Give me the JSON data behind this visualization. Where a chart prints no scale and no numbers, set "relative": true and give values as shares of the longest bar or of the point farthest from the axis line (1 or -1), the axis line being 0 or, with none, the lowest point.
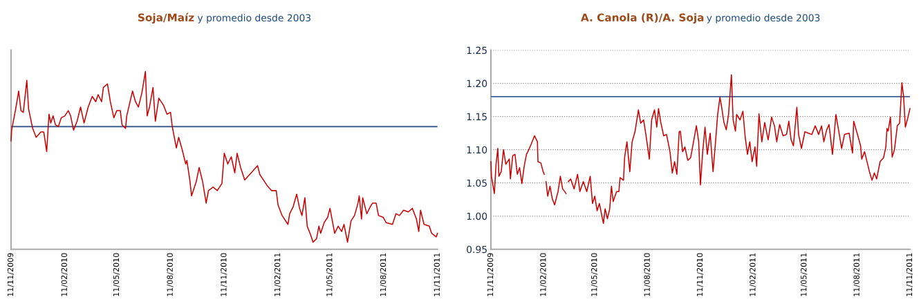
{
  "chart_data": [
    {
      "type": "line",
      "title": "Soja/Maíz",
      "subtitle": "y promedio desde 2003",
      "relative": true,
      "tick_labels": "x",
      "grid": false,
      "marker": "none",
      "line_style": "solid",
      "xlim": [
        "2009-11-11",
        "2011-11-11"
      ],
      "xticks": [
        {
          "value": "2009-11-11",
          "label": "11/11/2009"
        },
        {
          "value": "2010-02-11",
          "label": "11/02/2010"
        },
        {
          "value": "2010-05-11",
          "label": "11/05/2010"
        },
        {
          "value": "2010-08-11",
          "label": "11/08/2010"
        },
        {
          "value": "2010-11-11",
          "label": "11/11/2010"
        },
        {
          "value": "2011-02-11",
          "label": "11/02/2011"
        },
        {
          "value": "2011-05-11",
          "label": "11/05/2011"
        },
        {
          "value": "2011-08-11",
          "label": "11/08/2011"
        },
        {
          "value": "2011-11-11",
          "label": "11/11/2011"
        }
      ],
      "ref_lines": [
        {
          "axis": "y",
          "value": 0.69,
          "color": "#3b5f95"
        }
      ],
      "series": [
        {
          "color": "#cc0000",
          "x": [
            "2009-11-11",
            "2009-11-12",
            "2009-11-19",
            "2009-11-24",
            "2009-11-28",
            "2009-12-02",
            "2009-12-08",
            "2009-12-11",
            "2009-12-18",
            "2009-12-24",
            "2010-01-01",
            "2010-01-06",
            "2010-01-11",
            "2010-01-15",
            "2010-01-18",
            "2010-01-22",
            "2010-01-26",
            "2010-01-31",
            "2010-02-05",
            "2010-02-11",
            "2010-02-17",
            "2010-02-21",
            "2010-02-26",
            "2010-03-04",
            "2010-03-10",
            "2010-03-16",
            "2010-03-23",
            "2010-03-30",
            "2010-04-05",
            "2010-04-09",
            "2010-04-15",
            "2010-04-18",
            "2010-04-25",
            "2010-04-30",
            "2010-05-06",
            "2010-05-11",
            "2010-05-17",
            "2010-05-20",
            "2010-05-26",
            "2010-05-28",
            "2010-06-07",
            "2010-06-12",
            "2010-06-17",
            "2010-06-23",
            "2010-06-29",
            "2010-07-02",
            "2010-07-06",
            "2010-07-12",
            "2010-07-16",
            "2010-07-22",
            "2010-07-30",
            "2010-08-05",
            "2010-08-11",
            "2010-08-14",
            "2010-08-21",
            "2010-08-25",
            "2010-08-31",
            "2010-09-06",
            "2010-09-08",
            "2010-09-13",
            "2010-09-16",
            "2010-09-24",
            "2010-09-29",
            "2010-10-05",
            "2010-10-11",
            "2010-10-15",
            "2010-10-23",
            "2010-10-30",
            "2010-11-07",
            "2010-11-11",
            "2010-11-17",
            "2010-11-23",
            "2010-11-29",
            "2010-12-03",
            "2010-12-09",
            "2010-12-16",
            "2010-12-27",
            "2011-01-07",
            "2011-01-11",
            "2011-01-23",
            "2011-01-31",
            "2011-02-08",
            "2011-02-11",
            "2011-02-18",
            "2011-02-28",
            "2011-03-03",
            "2011-03-09",
            "2011-03-15",
            "2011-03-20",
            "2011-03-24",
            "2011-03-29",
            "2011-04-02",
            "2011-04-08",
            "2011-04-12",
            "2011-04-18",
            "2011-04-22",
            "2011-04-25",
            "2011-05-01",
            "2011-05-07",
            "2011-05-11",
            "2011-05-15",
            "2011-05-19",
            "2011-05-25",
            "2011-05-31",
            "2011-06-04",
            "2011-06-10",
            "2011-06-16",
            "2011-06-22",
            "2011-06-28",
            "2011-06-30",
            "2011-07-04",
            "2011-07-06",
            "2011-07-13",
            "2011-07-19",
            "2011-07-23",
            "2011-07-29",
            "2011-08-02",
            "2011-08-10",
            "2011-08-15",
            "2011-08-26",
            "2011-09-01",
            "2011-09-07",
            "2011-09-14",
            "2011-09-22",
            "2011-09-29",
            "2011-10-06",
            "2011-10-10",
            "2011-10-13",
            "2011-10-19",
            "2011-10-28",
            "2011-11-01",
            "2011-11-09",
            "2011-11-11"
          ],
          "values": [
            0.61,
            0.67,
            0.79,
            0.89,
            0.78,
            0.77,
            0.95,
            0.79,
            0.68,
            0.63,
            0.66,
            0.66,
            0.55,
            0.76,
            0.71,
            0.75,
            0.7,
            0.69,
            0.74,
            0.75,
            0.78,
            0.75,
            0.67,
            0.72,
            0.8,
            0.71,
            0.8,
            0.86,
            0.83,
            0.87,
            0.83,
            0.91,
            0.93,
            0.83,
            0.74,
            0.78,
            0.78,
            0.7,
            0.68,
            0.75,
            0.89,
            0.83,
            0.8,
            0.88,
            1.0,
            0.75,
            0.8,
            0.91,
            0.72,
            0.85,
            0.81,
            0.76,
            0.77,
            0.69,
            0.57,
            0.63,
            0.56,
            0.48,
            0.5,
            0.39,
            0.3,
            0.38,
            0.46,
            0.38,
            0.26,
            0.33,
            0.35,
            0.33,
            0.37,
            0.54,
            0.48,
            0.52,
            0.43,
            0.54,
            0.46,
            0.39,
            0.43,
            0.47,
            0.42,
            0.36,
            0.33,
            0.33,
            0.25,
            0.19,
            0.14,
            0.2,
            0.24,
            0.31,
            0.23,
            0.19,
            0.29,
            0.13,
            0.08,
            0.04,
            0.06,
            0.13,
            0.09,
            0.15,
            0.18,
            0.23,
            0.16,
            0.09,
            0.13,
            0.1,
            0.14,
            0.04,
            0.16,
            0.19,
            0.26,
            0.3,
            0.17,
            0.29,
            0.2,
            0.24,
            0.26,
            0.26,
            0.19,
            0.18,
            0.15,
            0.14,
            0.2,
            0.19,
            0.22,
            0.21,
            0.23,
            0.17,
            0.1,
            0.22,
            0.14,
            0.13,
            0.09,
            0.07,
            0.09
          ]
        }
      ]
    },
    {
      "type": "line",
      "title": "A. Canola (R)/A. Soja",
      "subtitle": "y promedio desde 2003",
      "grid": "y",
      "marker": "none",
      "line_style": "solid",
      "xlim": [
        "2009-11-11",
        "2011-11-11"
      ],
      "xticks": [
        {
          "value": "2009-11-11",
          "label": "11/11/2009"
        },
        {
          "value": "2010-02-11",
          "label": "11/02/2010"
        },
        {
          "value": "2010-05-11",
          "label": "11/05/2010"
        },
        {
          "value": "2010-08-11",
          "label": "11/08/2010"
        },
        {
          "value": "2010-11-11",
          "label": "11/11/2010"
        },
        {
          "value": "2011-02-11",
          "label": "11/02/2011"
        },
        {
          "value": "2011-05-11",
          "label": "11/05/2011"
        },
        {
          "value": "2011-08-11",
          "label": "11/08/2011"
        },
        {
          "value": "2011-11-11",
          "label": "11/11/2011"
        }
      ],
      "ylim": [
        0.95,
        1.25
      ],
      "yticks": [
        {
          "value": 0.95,
          "label": "0.95"
        },
        {
          "value": 1.0,
          "label": "1.00"
        },
        {
          "value": 1.05,
          "label": "1.05"
        },
        {
          "value": 1.1,
          "label": "1.10"
        },
        {
          "value": 1.15,
          "label": "1.15"
        },
        {
          "value": 1.2,
          "label": "1.20"
        },
        {
          "value": 1.25,
          "label": "1.25"
        }
      ],
      "ref_lines": [
        {
          "axis": "y",
          "value": 1.18,
          "color": "#3b5f95"
        }
      ],
      "series": [
        {
          "color": "#cc0000",
          "x": [
            "2009-11-11",
            "2009-11-12",
            "2009-11-17",
            "2009-11-20",
            "2009-11-23",
            "2009-11-25",
            "2009-11-29",
            "2009-12-03",
            "2009-12-07",
            "2009-12-13",
            "2009-12-15",
            "2009-12-19",
            "2009-12-23",
            "2009-12-27",
            "2009-12-31",
            "2010-01-04",
            "2010-01-08",
            "2010-01-12",
            "2010-01-16",
            "2010-01-20",
            "2010-01-26",
            "2010-01-31",
            "2010-02-01",
            "2010-02-06",
            "2010-02-10",
            "2010-02-12",
            "2010-02-13",
            "2010-02-15",
            "2010-02-18",
            "2010-02-22",
            "2010-02-26",
            "2010-03-02",
            "2010-03-08",
            "2010-03-12",
            "2010-03-16",
            "2010-03-22",
            "2010-03-24",
            "2010-03-26",
            "2010-03-30",
            "2010-04-05",
            "2010-04-11",
            "2010-04-15",
            "2010-04-21",
            "2010-04-27",
            "2010-05-03",
            "2010-05-07",
            "2010-05-11",
            "2010-05-15",
            "2010-05-19",
            "2010-05-26",
            "2010-05-29",
            "2010-06-02",
            "2010-06-06",
            "2010-06-09",
            "2010-06-12",
            "2010-06-18",
            "2010-06-22",
            "2010-06-24",
            "2010-06-30",
            "2010-07-02",
            "2010-07-06",
            "2010-07-11",
            "2010-07-15",
            "2010-07-20",
            "2010-07-26",
            "2010-07-30",
            "2010-08-04",
            "2010-08-08",
            "2010-08-14",
            "2010-08-18",
            "2010-08-23",
            "2010-08-27",
            "2010-08-30",
            "2010-09-03",
            "2010-09-08",
            "2010-09-13",
            "2010-09-19",
            "2010-09-23",
            "2010-09-27",
            "2010-10-01",
            "2010-10-05",
            "2010-10-07",
            "2010-10-11",
            "2010-10-15",
            "2010-10-20",
            "2010-10-25",
            "2010-10-30",
            "2010-11-04",
            "2010-11-08",
            "2010-11-11",
            "2010-11-15",
            "2010-11-19",
            "2010-11-23",
            "2010-11-28",
            "2010-12-03",
            "2010-12-08",
            "2010-12-11",
            "2010-12-15",
            "2010-12-18",
            "2010-12-22",
            "2010-12-26",
            "2010-12-30",
            "2011-01-04",
            "2011-01-07",
            "2011-01-11",
            "2011-01-13",
            "2011-01-19",
            "2011-01-24",
            "2011-01-28",
            "2011-02-01",
            "2011-02-05",
            "2011-02-09",
            "2011-02-14",
            "2011-02-17",
            "2011-02-21",
            "2011-02-26",
            "2011-03-03",
            "2011-03-09",
            "2011-03-15",
            "2011-03-20",
            "2011-03-24",
            "2011-03-29",
            "2011-04-04",
            "2011-04-10",
            "2011-04-14",
            "2011-04-18",
            "2011-04-22",
            "2011-04-28",
            "2011-05-01",
            "2011-05-06",
            "2011-05-12",
            "2011-05-18",
            "2011-05-24",
            "2011-05-30",
            "2011-06-05",
            "2011-06-10",
            "2011-06-14",
            "2011-06-19",
            "2011-06-23",
            "2011-06-29",
            "2011-07-01",
            "2011-07-05",
            "2011-07-10",
            "2011-07-15",
            "2011-07-20",
            "2011-07-28",
            "2011-08-03",
            "2011-08-05",
            "2011-08-11",
            "2011-08-17",
            "2011-08-19",
            "2011-08-24",
            "2011-09-02",
            "2011-09-06",
            "2011-09-10",
            "2011-09-14",
            "2011-09-20",
            "2011-09-26",
            "2011-09-30",
            "2011-10-02",
            "2011-10-04",
            "2011-10-08",
            "2011-10-11",
            "2011-10-15",
            "2011-10-20",
            "2011-10-24",
            "2011-10-28",
            "2011-10-31",
            "2011-11-03",
            "2011-11-07",
            "2011-11-11"
          ],
          "values": [
            1.082,
            1.06,
            1.034,
            1.078,
            1.102,
            1.06,
            1.067,
            1.1,
            1.078,
            1.086,
            1.056,
            1.091,
            1.093,
            1.063,
            1.073,
            1.049,
            1.075,
            1.093,
            1.1,
            1.108,
            1.121,
            1.112,
            1.082,
            1.08,
            1.067,
            1.063,
            null,
            1.052,
            1.03,
            1.045,
            1.026,
            1.017,
            1.037,
            1.06,
            1.041,
            1.034,
            null,
            1.052,
            1.056,
            1.041,
            1.063,
            1.037,
            1.052,
            1.037,
            1.06,
            1.019,
            1.03,
            1.008,
            1.019,
            0.989,
            1.011,
            0.996,
            1.011,
            1.045,
            1.022,
            1.037,
            1.037,
            1.058,
            1.054,
            1.089,
            1.112,
            1.067,
            1.112,
            1.127,
            1.16,
            1.14,
            1.145,
            1.123,
            1.086,
            1.145,
            1.16,
            1.134,
            1.162,
            1.141,
            1.121,
            1.123,
            1.097,
            1.065,
            1.082,
            1.063,
            1.127,
            1.128,
            1.097,
            1.104,
            1.084,
            1.088,
            1.112,
            1.136,
            1.112,
            1.047,
            1.097,
            1.134,
            1.093,
            1.125,
            1.067,
            1.119,
            1.153,
            1.179,
            1.164,
            1.141,
            1.13,
            1.153,
            1.213,
            1.145,
            1.128,
            1.153,
            1.145,
            1.158,
            1.119,
            1.093,
            1.112,
            1.082,
            1.104,
            1.075,
            1.154,
            1.112,
            1.141,
            1.115,
            1.149,
            1.136,
            1.112,
            1.138,
            1.121,
            1.123,
            1.143,
            1.115,
            1.106,
            1.164,
            1.123,
            1.102,
            1.127,
            1.125,
            1.123,
            1.136,
            1.123,
            1.136,
            1.112,
            1.13,
            1.138,
            1.093,
            1.112,
            1.153,
            1.128,
            1.102,
            1.123,
            1.125,
            1.095,
            1.143,
            1.125,
            1.106,
            1.086,
            1.097,
            1.065,
            1.054,
            1.065,
            1.056,
            1.082,
            1.088,
            1.104,
            1.132,
            1.128,
            1.149,
            1.089,
            1.1,
            1.136,
            1.14,
            1.201,
            1.179,
            1.134,
            1.147,
            1.162
          ]
        }
      ]
    }
  ]
}
